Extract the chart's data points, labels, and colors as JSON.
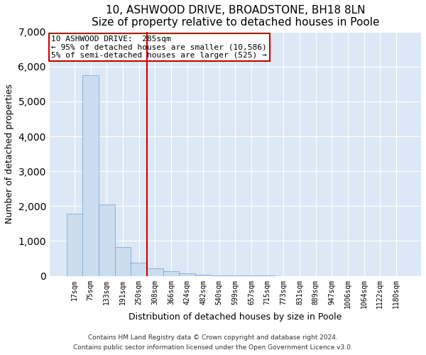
{
  "title": "10, ASHWOOD DRIVE, BROADSTONE, BH18 8LN",
  "subtitle": "Size of property relative to detached houses in Poole",
  "xlabel": "Distribution of detached houses by size in Poole",
  "ylabel": "Number of detached properties",
  "bar_labels": [
    "17sqm",
    "75sqm",
    "133sqm",
    "191sqm",
    "250sqm",
    "308sqm",
    "366sqm",
    "424sqm",
    "482sqm",
    "540sqm",
    "599sqm",
    "657sqm",
    "715sqm",
    "773sqm",
    "831sqm",
    "889sqm",
    "947sqm",
    "1006sqm",
    "1064sqm",
    "1122sqm",
    "1180sqm"
  ],
  "bar_values": [
    1780,
    5750,
    2050,
    830,
    370,
    220,
    130,
    80,
    40,
    20,
    10,
    5,
    3,
    0,
    0,
    0,
    0,
    0,
    0,
    0,
    0
  ],
  "bar_color": "#ccddf0",
  "bar_edge_color": "#7aadd4",
  "vline_x_index": 4.5,
  "vline_color": "#cc0000",
  "annotation_title": "10 ASHWOOD DRIVE:  285sqm",
  "annotation_line1": "← 95% of detached houses are smaller (10,586)",
  "annotation_line2": "5% of semi-detached houses are larger (525) →",
  "annotation_box_facecolor": "white",
  "annotation_box_edgecolor": "#cc0000",
  "ylim": [
    0,
    7000
  ],
  "yticks": [
    0,
    1000,
    2000,
    3000,
    4000,
    5000,
    6000,
    7000
  ],
  "fig_bg": "#ffffff",
  "plot_bg": "#dce8f5",
  "grid_color": "#ffffff",
  "footer1": "Contains HM Land Registry data © Crown copyright and database right 2024.",
  "footer2": "Contains public sector information licensed under the Open Government Licence v3.0.",
  "title_fontsize": 11,
  "subtitle_fontsize": 10,
  "tick_fontsize": 7,
  "axis_label_fontsize": 9,
  "annotation_fontsize": 8,
  "footer_fontsize": 6.5
}
